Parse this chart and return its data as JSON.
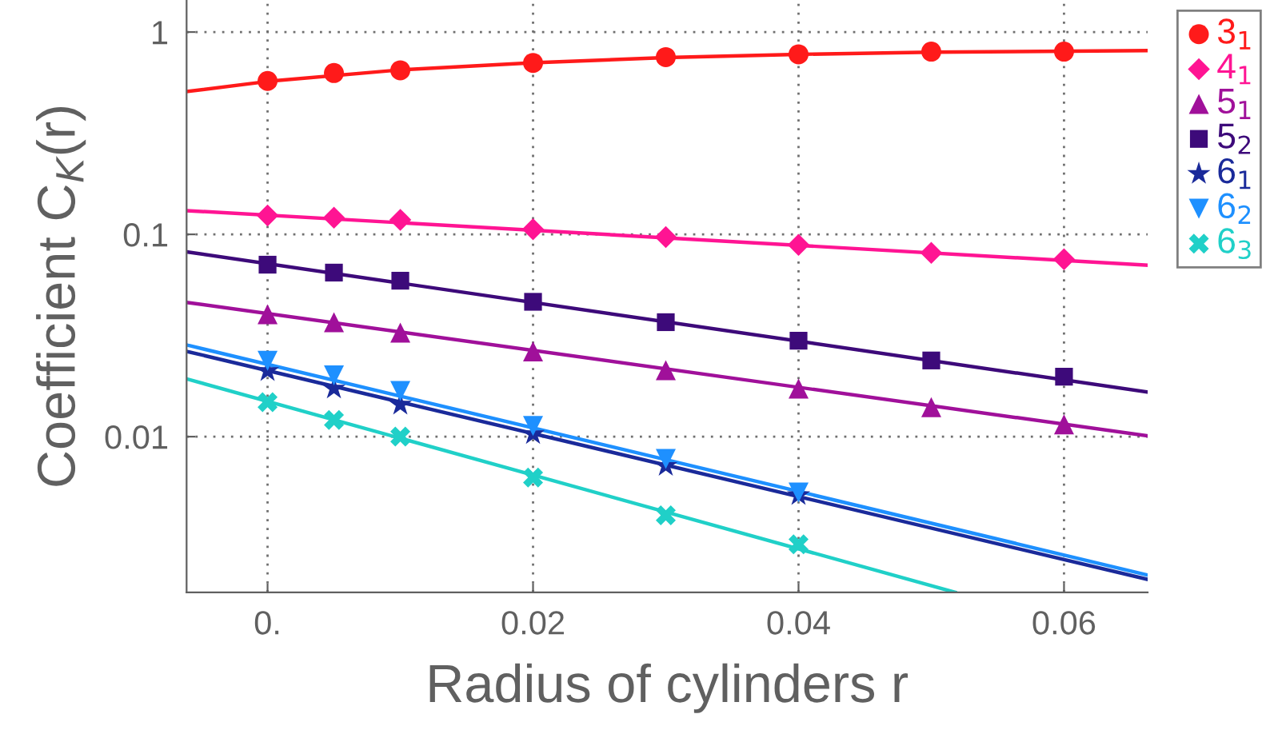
{
  "chart_data": {
    "type": "scatter",
    "xlabel": "Radius of cylinders r",
    "ylabel": "Coefficient C$_{K}$(r)",
    "log": "y",
    "xlim": [
      -0.0061,
      0.0663
    ],
    "ylim": [
      0.0017,
      1.44
    ],
    "xticks": [
      {
        "value": 0,
        "label": "0."
      },
      0.02,
      0.04,
      0.06
    ],
    "yticks": [
      0.01,
      0.1,
      1
    ],
    "grid": true,
    "legend": "right",
    "series": [
      {
        "name": "3$_{1}$",
        "marker": "circle",
        "color": "#ff1a1a",
        "x": [
          0,
          0.005,
          0.01,
          0.02,
          0.03,
          0.04,
          0.05,
          0.06
        ],
        "values": [
          0.573,
          0.627,
          0.647,
          0.704,
          0.752,
          0.776,
          0.8,
          0.8
        ]
      },
      {
        "name": "4$_{1}$",
        "marker": "diamond",
        "color": "#ff1493",
        "x": [
          0,
          0.005,
          0.01,
          0.02,
          0.03,
          0.04,
          0.05,
          0.06
        ],
        "values": [
          0.124,
          0.121,
          0.118,
          0.106,
          0.097,
          0.0887,
          0.081,
          0.0753
        ]
      },
      {
        "name": "5$_{1}$",
        "marker": "triangle",
        "color": "#a0109a",
        "x": [
          0,
          0.005,
          0.01,
          0.02,
          0.03,
          0.04,
          0.05,
          0.06
        ],
        "values": [
          0.0403,
          0.0368,
          0.0327,
          0.0264,
          0.0213,
          0.0173,
          0.014,
          0.0115
        ]
      },
      {
        "name": "5$_{2}$",
        "marker": "square",
        "color": "#3d0a7a",
        "x": [
          0,
          0.005,
          0.01,
          0.02,
          0.03,
          0.04,
          0.05,
          0.06
        ],
        "values": [
          0.0708,
          0.0647,
          0.059,
          0.0464,
          0.0368,
          0.0298,
          0.0238,
          0.0198
        ]
      },
      {
        "name": "6$_{1}$",
        "marker": "star",
        "color": "#1a2a9a",
        "x": [
          0,
          0.005,
          0.01,
          0.02,
          0.03,
          0.04
        ],
        "values": [
          0.0211,
          0.0173,
          0.0144,
          0.0103,
          0.00717,
          0.00514
        ]
      },
      {
        "name": "6$_{2}$",
        "marker": "triangle_down",
        "color": "#1e90ff",
        "x": [
          0,
          0.005,
          0.01,
          0.02,
          0.03,
          0.04
        ],
        "values": [
          0.0237,
          0.0201,
          0.0168,
          0.0113,
          0.00776,
          0.0053
        ]
      },
      {
        "name": "6$_{3}$",
        "marker": "cross",
        "color": "#20d0c8",
        "x": [
          0,
          0.005,
          0.01,
          0.02,
          0.03,
          0.04
        ],
        "values": [
          0.0148,
          0.0121,
          0.01,
          0.00628,
          0.00408,
          0.00294
        ]
      },
      {
        "type": "line",
        "color": "#ff1a1a",
        "x": [
          -0.0061,
          0,
          0.01,
          0.02,
          0.03,
          0.04,
          0.05,
          0.0663
        ],
        "values": [
          0.508,
          0.57,
          0.65,
          0.705,
          0.748,
          0.776,
          0.795,
          0.81
        ]
      },
      {
        "type": "line",
        "color": "#ff1493",
        "x": [
          -0.0061,
          0.0663
        ],
        "values": [
          0.131,
          0.0704
        ]
      },
      {
        "type": "line",
        "color": "#a0109a",
        "x": [
          -0.0061,
          0.0663
        ],
        "values": [
          0.0461,
          0.0101
        ]
      },
      {
        "type": "line",
        "color": "#3d0a7a",
        "x": [
          -0.0061,
          0.0663
        ],
        "values": [
          0.0819,
          0.0166
        ]
      },
      {
        "type": "line",
        "color": "#1a2a9a",
        "x": [
          -0.0061,
          0.0663
        ],
        "values": [
          0.0264,
          0.00197
        ]
      },
      {
        "type": "line",
        "color": "#1e90ff",
        "x": [
          -0.0061,
          0.0663
        ],
        "values": [
          0.0284,
          0.00207
        ]
      },
      {
        "type": "line",
        "color": "#20d0c8",
        "x": [
          -0.0061,
          0.0518
        ],
        "values": [
          0.0193,
          0.0017
        ]
      }
    ]
  }
}
